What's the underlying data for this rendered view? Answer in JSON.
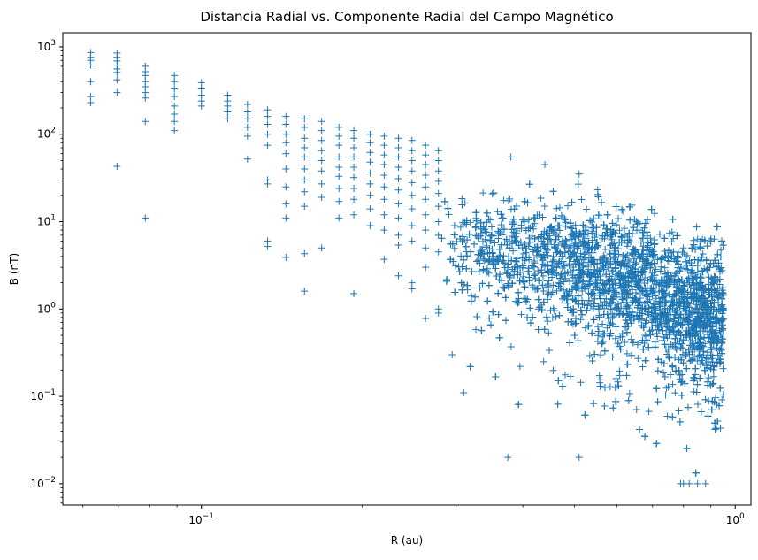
{
  "chart_data": {
    "type": "scatter",
    "title": "Distancia Radial vs. Componente Radial del Campo Magnético",
    "xlabel": "R (au)",
    "ylabel": "B  (nT)",
    "xscale": "log",
    "yscale": "log",
    "xlim": [
      0.055,
      1.07
    ],
    "ylim": [
      0.0057,
      1450
    ],
    "grid": false,
    "marker": "+",
    "color": "#1f77b4",
    "x_ticks": [
      {
        "value": 0.1,
        "base": "10",
        "exp": "−1"
      },
      {
        "value": 1,
        "base": "10",
        "exp": "0"
      }
    ],
    "y_ticks": [
      {
        "value": 0.01,
        "base": "10",
        "exp": "−2"
      },
      {
        "value": 0.1,
        "base": "10",
        "exp": "−1"
      },
      {
        "value": 1,
        "base": "10",
        "exp": "0"
      },
      {
        "value": 10,
        "base": "10",
        "exp": "1"
      },
      {
        "value": 100,
        "base": "10",
        "exp": "2"
      },
      {
        "value": 1000,
        "base": "10",
        "exp": "3"
      }
    ],
    "band_points": [
      {
        "x": 0.062,
        "y": [
          860,
          760,
          700,
          620,
          400,
          270,
          230
        ]
      },
      {
        "x": 0.0695,
        "y": [
          850,
          760,
          690,
          620,
          560,
          510,
          420,
          300,
          43
        ]
      },
      {
        "x": 0.0785,
        "y": [
          600,
          520,
          470,
          400,
          350,
          300,
          260,
          140,
          11
        ]
      },
      {
        "x": 0.089,
        "y": [
          470,
          400,
          330,
          270,
          210,
          170,
          140,
          110
        ]
      },
      {
        "x": 0.1,
        "y": [
          390,
          330,
          280,
          240,
          210
        ]
      },
      {
        "x": 0.112,
        "y": [
          280,
          240,
          210,
          180,
          150
        ]
      },
      {
        "x": 0.122,
        "y": [
          220,
          180,
          150,
          120,
          95,
          52
        ]
      },
      {
        "x": 0.133,
        "y": [
          190,
          160,
          130,
          100,
          75,
          30,
          27,
          6,
          5.2
        ]
      },
      {
        "x": 0.144,
        "y": [
          160,
          130,
          100,
          80,
          60,
          40,
          25,
          16,
          11,
          3.9
        ]
      },
      {
        "x": 0.156,
        "y": [
          150,
          120,
          90,
          70,
          55,
          40,
          30,
          22,
          15,
          4.3,
          1.6
        ]
      },
      {
        "x": 0.168,
        "y": [
          140,
          110,
          85,
          65,
          50,
          38,
          27,
          19,
          5
        ]
      },
      {
        "x": 0.181,
        "y": [
          120,
          95,
          75,
          55,
          42,
          33,
          24,
          17,
          11
        ]
      },
      {
        "x": 0.193,
        "y": [
          110,
          90,
          70,
          55,
          42,
          32,
          24,
          18,
          12,
          1.5
        ]
      },
      {
        "x": 0.207,
        "y": [
          100,
          80,
          62,
          48,
          36,
          27,
          20,
          14,
          9
        ]
      },
      {
        "x": 0.22,
        "y": [
          95,
          75,
          58,
          45,
          34,
          25,
          18,
          12,
          8,
          3.7
        ]
      },
      {
        "x": 0.234,
        "y": [
          90,
          70,
          55,
          42,
          31,
          23,
          16,
          11,
          7,
          5.4,
          2.4
        ]
      },
      {
        "x": 0.248,
        "y": [
          85,
          65,
          50,
          38,
          28,
          20,
          14,
          9,
          6,
          2,
          1.7
        ]
      },
      {
        "x": 0.263,
        "y": [
          75,
          58,
          45,
          34,
          25,
          18,
          12,
          8,
          5,
          3,
          0.78
        ]
      },
      {
        "x": 0.278,
        "y": [
          65,
          50,
          38,
          29,
          21,
          15,
          10,
          7,
          4.5,
          1,
          0.9
        ]
      },
      {
        "x": 0.295,
        "y": [
          0.3
        ]
      },
      {
        "x": 0.31,
        "y": [
          0.11
        ]
      },
      {
        "x": 0.375,
        "y": [
          0.02
        ]
      },
      {
        "x": 0.51,
        "y": [
          0.02
        ]
      },
      {
        "x": 0.88,
        "y": [
          0.01
        ]
      },
      {
        "x": 0.85,
        "y": [
          0.01
        ]
      },
      {
        "x": 0.82,
        "y": [
          0.01
        ]
      },
      {
        "x": 0.8,
        "y": [
          0.01
        ]
      },
      {
        "x": 0.79,
        "y": [
          0.01
        ]
      },
      {
        "x": 0.51,
        "y": [
          35
        ]
      },
      {
        "x": 0.44,
        "y": [
          45
        ]
      },
      {
        "x": 0.38,
        "y": [
          55
        ]
      }
    ],
    "cloud_model": {
      "n_points": 4200,
      "r_range": [
        0.28,
        0.95
      ],
      "b_min": 0.01,
      "description_free": true
    }
  }
}
